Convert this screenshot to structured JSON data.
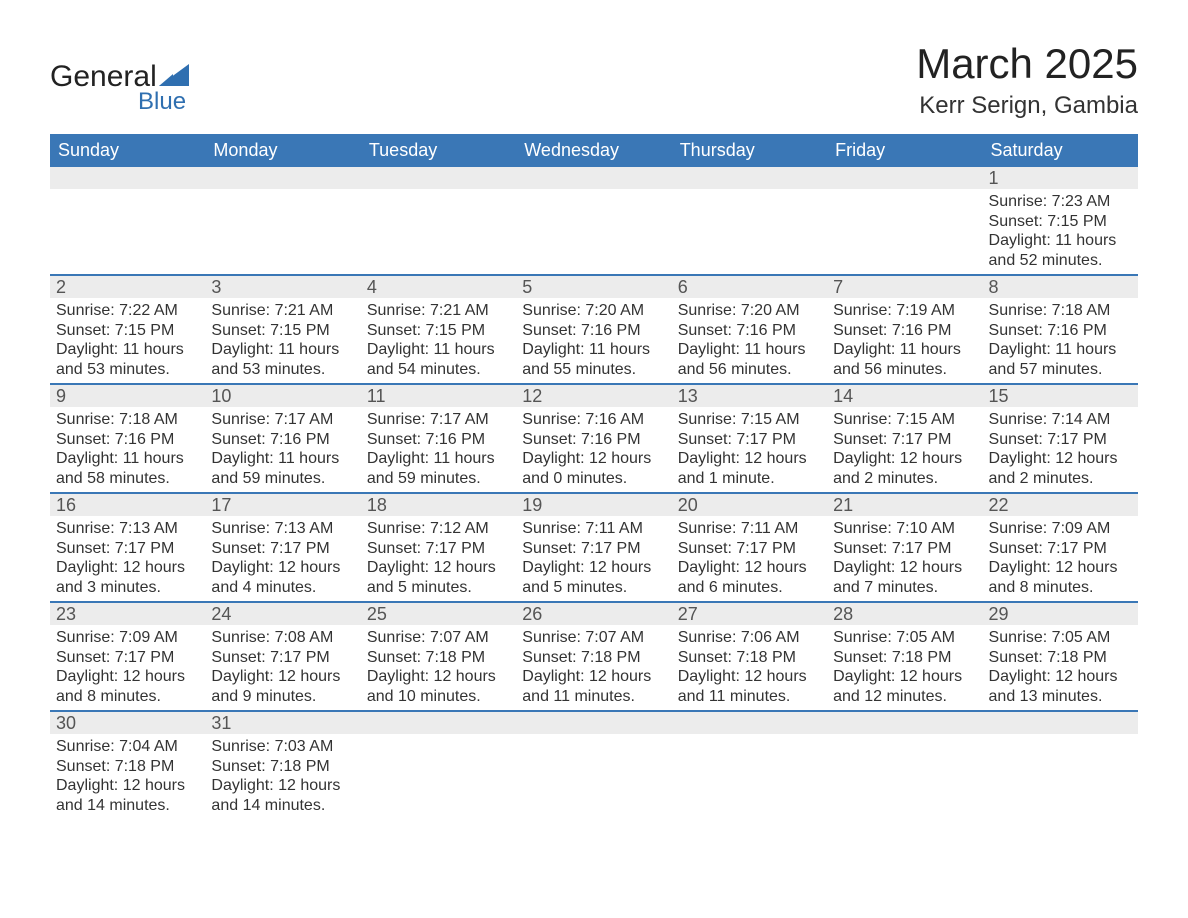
{
  "brand": {
    "name_a": "General",
    "name_b": "Blue",
    "sail_color": "#2f6fb0",
    "text_color": "#222222"
  },
  "title": "March 2025",
  "location": "Kerr Serign, Gambia",
  "colors": {
    "header_bg": "#3a77b6",
    "header_fg": "#ffffff",
    "daynum_bg": "#ececec",
    "border": "#3a77b6",
    "text": "#333333",
    "background": "#ffffff"
  },
  "weekdays": [
    "Sunday",
    "Monday",
    "Tuesday",
    "Wednesday",
    "Thursday",
    "Friday",
    "Saturday"
  ],
  "weeks": [
    [
      null,
      null,
      null,
      null,
      null,
      null,
      {
        "n": "1",
        "sr": "Sunrise: 7:23 AM",
        "ss": "Sunset: 7:15 PM",
        "d1": "Daylight: 11 hours",
        "d2": "and 52 minutes."
      }
    ],
    [
      {
        "n": "2",
        "sr": "Sunrise: 7:22 AM",
        "ss": "Sunset: 7:15 PM",
        "d1": "Daylight: 11 hours",
        "d2": "and 53 minutes."
      },
      {
        "n": "3",
        "sr": "Sunrise: 7:21 AM",
        "ss": "Sunset: 7:15 PM",
        "d1": "Daylight: 11 hours",
        "d2": "and 53 minutes."
      },
      {
        "n": "4",
        "sr": "Sunrise: 7:21 AM",
        "ss": "Sunset: 7:15 PM",
        "d1": "Daylight: 11 hours",
        "d2": "and 54 minutes."
      },
      {
        "n": "5",
        "sr": "Sunrise: 7:20 AM",
        "ss": "Sunset: 7:16 PM",
        "d1": "Daylight: 11 hours",
        "d2": "and 55 minutes."
      },
      {
        "n": "6",
        "sr": "Sunrise: 7:20 AM",
        "ss": "Sunset: 7:16 PM",
        "d1": "Daylight: 11 hours",
        "d2": "and 56 minutes."
      },
      {
        "n": "7",
        "sr": "Sunrise: 7:19 AM",
        "ss": "Sunset: 7:16 PM",
        "d1": "Daylight: 11 hours",
        "d2": "and 56 minutes."
      },
      {
        "n": "8",
        "sr": "Sunrise: 7:18 AM",
        "ss": "Sunset: 7:16 PM",
        "d1": "Daylight: 11 hours",
        "d2": "and 57 minutes."
      }
    ],
    [
      {
        "n": "9",
        "sr": "Sunrise: 7:18 AM",
        "ss": "Sunset: 7:16 PM",
        "d1": "Daylight: 11 hours",
        "d2": "and 58 minutes."
      },
      {
        "n": "10",
        "sr": "Sunrise: 7:17 AM",
        "ss": "Sunset: 7:16 PM",
        "d1": "Daylight: 11 hours",
        "d2": "and 59 minutes."
      },
      {
        "n": "11",
        "sr": "Sunrise: 7:17 AM",
        "ss": "Sunset: 7:16 PM",
        "d1": "Daylight: 11 hours",
        "d2": "and 59 minutes."
      },
      {
        "n": "12",
        "sr": "Sunrise: 7:16 AM",
        "ss": "Sunset: 7:16 PM",
        "d1": "Daylight: 12 hours",
        "d2": "and 0 minutes."
      },
      {
        "n": "13",
        "sr": "Sunrise: 7:15 AM",
        "ss": "Sunset: 7:17 PM",
        "d1": "Daylight: 12 hours",
        "d2": "and 1 minute."
      },
      {
        "n": "14",
        "sr": "Sunrise: 7:15 AM",
        "ss": "Sunset: 7:17 PM",
        "d1": "Daylight: 12 hours",
        "d2": "and 2 minutes."
      },
      {
        "n": "15",
        "sr": "Sunrise: 7:14 AM",
        "ss": "Sunset: 7:17 PM",
        "d1": "Daylight: 12 hours",
        "d2": "and 2 minutes."
      }
    ],
    [
      {
        "n": "16",
        "sr": "Sunrise: 7:13 AM",
        "ss": "Sunset: 7:17 PM",
        "d1": "Daylight: 12 hours",
        "d2": "and 3 minutes."
      },
      {
        "n": "17",
        "sr": "Sunrise: 7:13 AM",
        "ss": "Sunset: 7:17 PM",
        "d1": "Daylight: 12 hours",
        "d2": "and 4 minutes."
      },
      {
        "n": "18",
        "sr": "Sunrise: 7:12 AM",
        "ss": "Sunset: 7:17 PM",
        "d1": "Daylight: 12 hours",
        "d2": "and 5 minutes."
      },
      {
        "n": "19",
        "sr": "Sunrise: 7:11 AM",
        "ss": "Sunset: 7:17 PM",
        "d1": "Daylight: 12 hours",
        "d2": "and 5 minutes."
      },
      {
        "n": "20",
        "sr": "Sunrise: 7:11 AM",
        "ss": "Sunset: 7:17 PM",
        "d1": "Daylight: 12 hours",
        "d2": "and 6 minutes."
      },
      {
        "n": "21",
        "sr": "Sunrise: 7:10 AM",
        "ss": "Sunset: 7:17 PM",
        "d1": "Daylight: 12 hours",
        "d2": "and 7 minutes."
      },
      {
        "n": "22",
        "sr": "Sunrise: 7:09 AM",
        "ss": "Sunset: 7:17 PM",
        "d1": "Daylight: 12 hours",
        "d2": "and 8 minutes."
      }
    ],
    [
      {
        "n": "23",
        "sr": "Sunrise: 7:09 AM",
        "ss": "Sunset: 7:17 PM",
        "d1": "Daylight: 12 hours",
        "d2": "and 8 minutes."
      },
      {
        "n": "24",
        "sr": "Sunrise: 7:08 AM",
        "ss": "Sunset: 7:17 PM",
        "d1": "Daylight: 12 hours",
        "d2": "and 9 minutes."
      },
      {
        "n": "25",
        "sr": "Sunrise: 7:07 AM",
        "ss": "Sunset: 7:18 PM",
        "d1": "Daylight: 12 hours",
        "d2": "and 10 minutes."
      },
      {
        "n": "26",
        "sr": "Sunrise: 7:07 AM",
        "ss": "Sunset: 7:18 PM",
        "d1": "Daylight: 12 hours",
        "d2": "and 11 minutes."
      },
      {
        "n": "27",
        "sr": "Sunrise: 7:06 AM",
        "ss": "Sunset: 7:18 PM",
        "d1": "Daylight: 12 hours",
        "d2": "and 11 minutes."
      },
      {
        "n": "28",
        "sr": "Sunrise: 7:05 AM",
        "ss": "Sunset: 7:18 PM",
        "d1": "Daylight: 12 hours",
        "d2": "and 12 minutes."
      },
      {
        "n": "29",
        "sr": "Sunrise: 7:05 AM",
        "ss": "Sunset: 7:18 PM",
        "d1": "Daylight: 12 hours",
        "d2": "and 13 minutes."
      }
    ],
    [
      {
        "n": "30",
        "sr": "Sunrise: 7:04 AM",
        "ss": "Sunset: 7:18 PM",
        "d1": "Daylight: 12 hours",
        "d2": "and 14 minutes."
      },
      {
        "n": "31",
        "sr": "Sunrise: 7:03 AM",
        "ss": "Sunset: 7:18 PM",
        "d1": "Daylight: 12 hours",
        "d2": "and 14 minutes."
      },
      null,
      null,
      null,
      null,
      null
    ]
  ]
}
